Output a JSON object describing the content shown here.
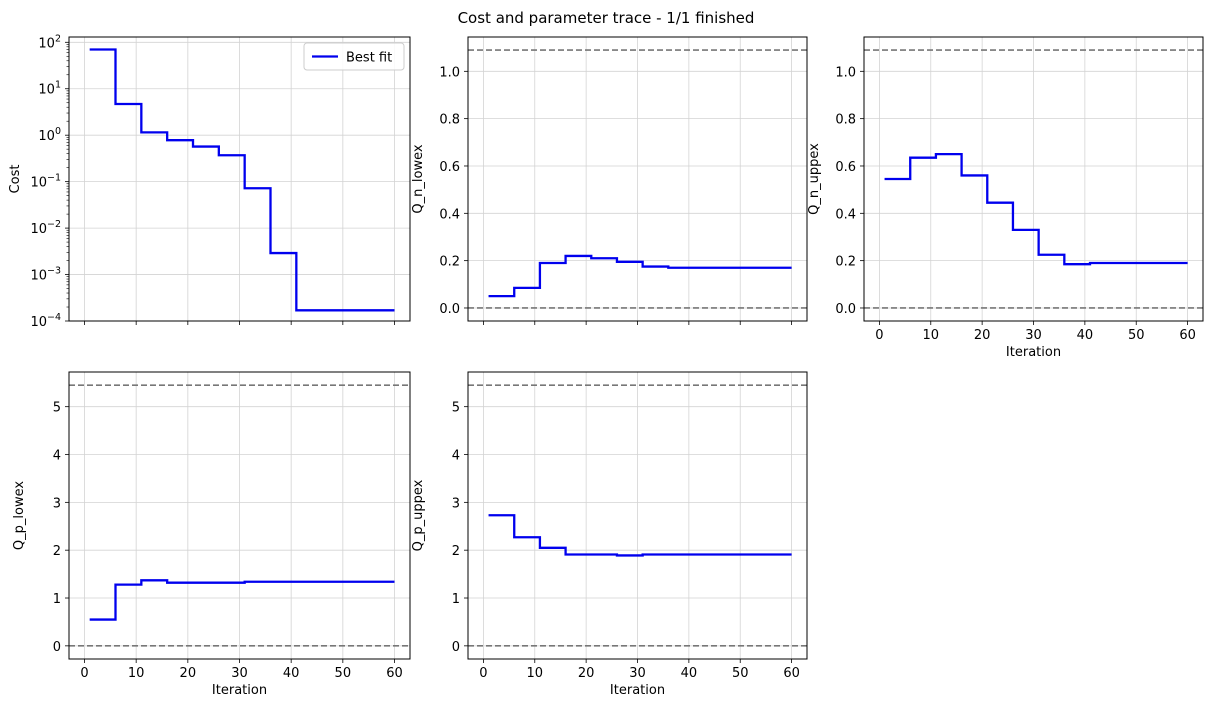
{
  "figure_title": "Cost and parameter trace - 1/1 finished",
  "colors": {
    "series": "#0000ee",
    "bound": "#777777",
    "grid": "#d3d3d3"
  },
  "legend": {
    "label": "Best fit",
    "placement": "top-right"
  },
  "chart_data": [
    {
      "id": "cost",
      "type": "line",
      "step": "post",
      "yscale": "log",
      "title": "",
      "xlabel": "",
      "ylabel": "Cost",
      "xlim": [
        -3,
        63
      ],
      "ylim": [
        0.0001,
        130
      ],
      "xticks": [
        0,
        10,
        20,
        30,
        40,
        50,
        60
      ],
      "show_xticklabels": false,
      "yticks": [
        {
          "value": 100,
          "base": "10",
          "exp": "2"
        },
        {
          "value": 10,
          "base": "10",
          "exp": "1"
        },
        {
          "value": 1,
          "base": "10",
          "exp": "0"
        },
        {
          "value": 0.1,
          "base": "10",
          "exp": "−1"
        },
        {
          "value": 0.01,
          "base": "10",
          "exp": "−2"
        },
        {
          "value": 0.001,
          "base": "10",
          "exp": "−3"
        },
        {
          "value": 0.0001,
          "base": "10",
          "exp": "−4"
        }
      ],
      "series": [
        {
          "name": "Best fit",
          "x": [
            1,
            6,
            11,
            16,
            21,
            26,
            31,
            36,
            41,
            60
          ],
          "y": [
            70,
            4.7,
            1.15,
            0.78,
            0.57,
            0.37,
            0.072,
            0.0029,
            0.00017,
            0.00017
          ]
        }
      ],
      "bounds": []
    },
    {
      "id": "q_n_lowex",
      "type": "line",
      "step": "post",
      "yscale": "linear",
      "xlabel": "",
      "ylabel": "Q_n_lowex",
      "xlim": [
        -3,
        63
      ],
      "ylim": [
        -0.055,
        1.145
      ],
      "xticks": [
        0,
        10,
        20,
        30,
        40,
        50,
        60
      ],
      "show_xticklabels": false,
      "yticks": [
        "0.0",
        "0.2",
        "0.4",
        "0.6",
        "0.8",
        "1.0"
      ],
      "series": [
        {
          "name": "Best fit",
          "x": [
            1,
            6,
            11,
            16,
            21,
            26,
            31,
            36,
            60
          ],
          "y": [
            0.05,
            0.085,
            0.19,
            0.22,
            0.21,
            0.195,
            0.175,
            0.17,
            0.17
          ]
        }
      ],
      "bounds": [
        0.0,
        1.09
      ]
    },
    {
      "id": "q_n_uppex",
      "type": "line",
      "step": "post",
      "yscale": "linear",
      "xlabel": "Iteration",
      "ylabel": "Q_n_uppex",
      "xlim": [
        -3,
        63
      ],
      "ylim": [
        -0.055,
        1.145
      ],
      "xticks": [
        "0",
        "10",
        "20",
        "30",
        "40",
        "50",
        "60"
      ],
      "show_xticklabels": true,
      "yticks": [
        "0.0",
        "0.2",
        "0.4",
        "0.6",
        "0.8",
        "1.0"
      ],
      "series": [
        {
          "name": "Best fit",
          "x": [
            1,
            6,
            11,
            16,
            21,
            26,
            31,
            36,
            41,
            60
          ],
          "y": [
            0.545,
            0.635,
            0.65,
            0.56,
            0.445,
            0.33,
            0.225,
            0.185,
            0.19,
            0.19
          ]
        }
      ],
      "bounds": [
        0.0,
        1.09
      ]
    },
    {
      "id": "q_p_lowex",
      "type": "line",
      "step": "post",
      "yscale": "linear",
      "xlabel": "Iteration",
      "ylabel": "Q_p_lowex",
      "xlim": [
        -3,
        63
      ],
      "ylim": [
        -0.275,
        5.725
      ],
      "xticks": [
        "0",
        "10",
        "20",
        "30",
        "40",
        "50",
        "60"
      ],
      "show_xticklabels": true,
      "yticks": [
        "0",
        "1",
        "2",
        "3",
        "4",
        "5"
      ],
      "series": [
        {
          "name": "Best fit",
          "x": [
            1,
            6,
            11,
            16,
            31,
            60
          ],
          "y": [
            0.55,
            1.28,
            1.37,
            1.32,
            1.34,
            1.34
          ]
        }
      ],
      "bounds": [
        0.0,
        5.45
      ]
    },
    {
      "id": "q_p_uppex",
      "type": "line",
      "step": "post",
      "yscale": "linear",
      "xlabel": "Iteration",
      "ylabel": "Q_p_uppex",
      "xlim": [
        -3,
        63
      ],
      "ylim": [
        -0.275,
        5.725
      ],
      "xticks": [
        "0",
        "10",
        "20",
        "30",
        "40",
        "50",
        "60"
      ],
      "show_xticklabels": true,
      "yticks": [
        "0",
        "1",
        "2",
        "3",
        "4",
        "5"
      ],
      "series": [
        {
          "name": "Best fit",
          "x": [
            1,
            6,
            11,
            16,
            26,
            31,
            60
          ],
          "y": [
            2.73,
            2.27,
            2.05,
            1.91,
            1.89,
            1.91,
            1.91
          ]
        }
      ],
      "bounds": [
        0.0,
        5.45
      ]
    }
  ]
}
